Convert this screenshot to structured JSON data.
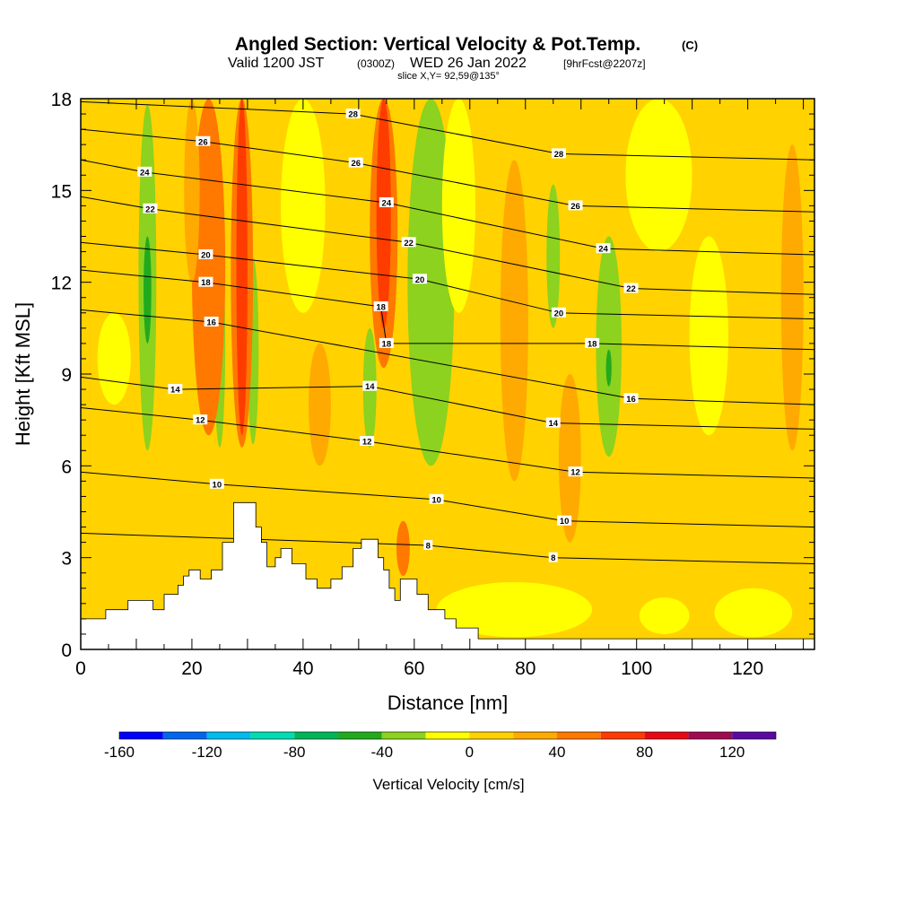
{
  "chart_data": {
    "type": "heatmap",
    "title": {
      "main": "Angled Section: Vertical Velocity & Pot.Temp.",
      "unit_tag": "(C)",
      "valid_prefix": "Valid 1200 JST",
      "valid_utc": "(0300Z)",
      "valid_date": "WED 26 Jan 2022",
      "forecast": "[9hrFcst@2207z]",
      "slice": "slice X,Y= 92,59@135°"
    },
    "xlabel": "Distance [nm]",
    "ylabel": "Height [Kft MSL]",
    "xlim": [
      0,
      132
    ],
    "ylim": [
      0,
      18
    ],
    "x_ticks": [
      "0",
      "20",
      "40",
      "60",
      "80",
      "100",
      "120"
    ],
    "y_ticks": [
      "0",
      "3",
      "6",
      "9",
      "12",
      "15",
      "18"
    ],
    "colorbar": {
      "title": "Vertical Velocity [cm/s]",
      "levels": [
        -160,
        -140,
        -120,
        -100,
        -80,
        -60,
        -40,
        -20,
        0,
        20,
        40,
        60,
        80,
        100,
        120,
        140
      ],
      "colors": [
        "#0000ff",
        "#0066ee",
        "#00bbee",
        "#00dcb4",
        "#00b45a",
        "#22aa1e",
        "#8cd21e",
        "#ffff00",
        "#ffd200",
        "#ffaa00",
        "#ff7800",
        "#ff3c00",
        "#e60a14",
        "#a00a50",
        "#5a0aa0"
      ],
      "labels": [
        "-160",
        "-120",
        "-80",
        "-40",
        "0",
        "40",
        "80",
        "120"
      ]
    },
    "background_field": {
      "value": 10,
      "color": "#fcd200"
    },
    "velocity_regions": [
      {
        "x": 12,
        "y0": 6.5,
        "y1": 17.8,
        "w": 1.6,
        "value": -30
      },
      {
        "x": 12,
        "y0": 10.0,
        "y1": 13.5,
        "w": 0.7,
        "value": -45
      },
      {
        "x": 25,
        "y0": 6.6,
        "y1": 13.5,
        "w": 1.0,
        "value": -30
      },
      {
        "x": 31,
        "y0": 6.7,
        "y1": 12.8,
        "w": 1.0,
        "value": -30
      },
      {
        "x": 52,
        "y0": 6.6,
        "y1": 10.5,
        "w": 1.2,
        "value": -30
      },
      {
        "x": 63,
        "y0": 6.0,
        "y1": 18.0,
        "w": 4.2,
        "value": -30
      },
      {
        "x": 85,
        "y0": 10.5,
        "y1": 15.2,
        "w": 1.2,
        "value": -30
      },
      {
        "x": 95,
        "y0": 6.3,
        "y1": 13.5,
        "w": 2.3,
        "value": -30
      },
      {
        "x": 95,
        "y0": 8.6,
        "y1": 9.8,
        "w": 0.5,
        "value": -45
      },
      {
        "x": 23,
        "y0": 7.0,
        "y1": 18.0,
        "w": 3.0,
        "value": 40
      },
      {
        "x": 29,
        "y0": 6.6,
        "y1": 18.0,
        "w": 2.0,
        "value": 40
      },
      {
        "x": 29,
        "y0": 7.0,
        "y1": 18.0,
        "w": 1.0,
        "value": 70
      },
      {
        "x": 54.5,
        "y0": 9.2,
        "y1": 18.0,
        "w": 2.5,
        "value": 50
      },
      {
        "x": 54.5,
        "y0": 10.5,
        "y1": 18.0,
        "w": 1.3,
        "value": 70
      },
      {
        "x": 58,
        "y0": 2.4,
        "y1": 4.2,
        "w": 1.2,
        "value": 50
      },
      {
        "x": 20,
        "y0": 12.0,
        "y1": 18.0,
        "w": 1.4,
        "value": 30
      },
      {
        "x": 43,
        "y0": 6.0,
        "y1": 10.0,
        "w": 2.0,
        "value": 30
      },
      {
        "x": 78,
        "y0": 5.5,
        "y1": 16.0,
        "w": 2.5,
        "value": 30
      },
      {
        "x": 88,
        "y0": 3.5,
        "y1": 9.0,
        "w": 2.0,
        "value": 30
      },
      {
        "x": 128,
        "y0": 6.5,
        "y1": 16.5,
        "w": 2.0,
        "value": 30
      },
      {
        "x": 78,
        "y0": 0.4,
        "y1": 2.2,
        "w": 14.0,
        "value": -10
      },
      {
        "x": 105,
        "y0": 0.5,
        "y1": 1.7,
        "w": 4.5,
        "value": -10
      },
      {
        "x": 121,
        "y0": 0.4,
        "y1": 2.0,
        "w": 7.0,
        "value": -10
      },
      {
        "x": 68,
        "y0": 11.0,
        "y1": 18.0,
        "w": 3.0,
        "value": -10
      },
      {
        "x": 104,
        "y0": 13.0,
        "y1": 18.0,
        "w": 6.0,
        "value": -10
      },
      {
        "x": 113,
        "y0": 7.0,
        "y1": 13.5,
        "w": 3.5,
        "value": -10
      },
      {
        "x": 40,
        "y0": 11.0,
        "y1": 18.0,
        "w": 4.0,
        "value": -10
      },
      {
        "x": 6,
        "y0": 8.0,
        "y1": 11.0,
        "w": 3.0,
        "value": -10
      }
    ],
    "terrain_kft": [
      [
        0,
        1.0
      ],
      [
        4.5,
        1.0
      ],
      [
        4.5,
        1.3
      ],
      [
        8.5,
        1.3
      ],
      [
        8.5,
        1.6
      ],
      [
        13,
        1.6
      ],
      [
        13,
        1.3
      ],
      [
        15,
        1.3
      ],
      [
        15,
        1.8
      ],
      [
        17.5,
        1.8
      ],
      [
        17.5,
        2.1
      ],
      [
        18.5,
        2.1
      ],
      [
        18.5,
        2.4
      ],
      [
        19.5,
        2.4
      ],
      [
        19.5,
        2.6
      ],
      [
        21.5,
        2.6
      ],
      [
        21.5,
        2.3
      ],
      [
        23.5,
        2.3
      ],
      [
        23.5,
        2.6
      ],
      [
        25.5,
        2.6
      ],
      [
        25.5,
        3.5
      ],
      [
        27.5,
        3.5
      ],
      [
        27.5,
        4.8
      ],
      [
        31.5,
        4.8
      ],
      [
        31.5,
        4.0
      ],
      [
        32.5,
        4.0
      ],
      [
        32.5,
        3.5
      ],
      [
        33.5,
        3.5
      ],
      [
        33.5,
        2.7
      ],
      [
        35,
        2.7
      ],
      [
        35,
        3.0
      ],
      [
        36,
        3.0
      ],
      [
        36,
        3.3
      ],
      [
        38,
        3.3
      ],
      [
        38,
        2.8
      ],
      [
        40.5,
        2.8
      ],
      [
        40.5,
        2.3
      ],
      [
        42.5,
        2.3
      ],
      [
        42.5,
        2.0
      ],
      [
        45,
        2.0
      ],
      [
        45,
        2.3
      ],
      [
        47,
        2.3
      ],
      [
        47,
        2.7
      ],
      [
        49,
        2.7
      ],
      [
        49,
        3.3
      ],
      [
        50.5,
        3.3
      ],
      [
        50.5,
        3.6
      ],
      [
        53.5,
        3.6
      ],
      [
        53.5,
        3.0
      ],
      [
        54.5,
        3.0
      ],
      [
        54.5,
        2.6
      ],
      [
        55.5,
        2.6
      ],
      [
        55.5,
        2.0
      ],
      [
        56.5,
        2.0
      ],
      [
        56.5,
        1.6
      ],
      [
        57.5,
        1.6
      ],
      [
        57.5,
        2.3
      ],
      [
        60.5,
        2.3
      ],
      [
        60.5,
        1.8
      ],
      [
        62.5,
        1.8
      ],
      [
        62.5,
        1.3
      ],
      [
        65.5,
        1.3
      ],
      [
        65.5,
        1.0
      ],
      [
        67.5,
        1.0
      ],
      [
        67.5,
        0.7
      ],
      [
        71.5,
        0.7
      ],
      [
        71.5,
        0.35
      ],
      [
        132,
        0.35
      ]
    ],
    "theta_contour_labels": [
      {
        "text": "28",
        "x": 49,
        "y": 17.5
      },
      {
        "text": "26",
        "x": 22,
        "y": 16.6
      },
      {
        "text": "26",
        "x": 49.5,
        "y": 15.9
      },
      {
        "text": "28",
        "x": 86,
        "y": 16.2
      },
      {
        "text": "24",
        "x": 11.5,
        "y": 15.6
      },
      {
        "text": "24",
        "x": 55,
        "y": 14.6
      },
      {
        "text": "26",
        "x": 89,
        "y": 14.5
      },
      {
        "text": "22",
        "x": 12.5,
        "y": 14.4
      },
      {
        "text": "22",
        "x": 59,
        "y": 13.3
      },
      {
        "text": "24",
        "x": 94,
        "y": 13.1
      },
      {
        "text": "20",
        "x": 22.5,
        "y": 12.9
      },
      {
        "text": "20",
        "x": 61,
        "y": 12.1
      },
      {
        "text": "18",
        "x": 22.5,
        "y": 12.0
      },
      {
        "text": "22",
        "x": 99,
        "y": 11.8
      },
      {
        "text": "18",
        "x": 54,
        "y": 11.2
      },
      {
        "text": "20",
        "x": 86,
        "y": 11.0
      },
      {
        "text": "16",
        "x": 23.5,
        "y": 10.7
      },
      {
        "text": "18",
        "x": 55,
        "y": 10.0
      },
      {
        "text": "18",
        "x": 92,
        "y": 10.0
      },
      {
        "text": "14",
        "x": 17,
        "y": 8.5
      },
      {
        "text": "14",
        "x": 52,
        "y": 8.6
      },
      {
        "text": "16",
        "x": 99,
        "y": 8.2
      },
      {
        "text": "12",
        "x": 21.5,
        "y": 7.5
      },
      {
        "text": "14",
        "x": 85,
        "y": 7.4
      },
      {
        "text": "12",
        "x": 51.5,
        "y": 6.8
      },
      {
        "text": "12",
        "x": 89,
        "y": 5.8
      },
      {
        "text": "10",
        "x": 24.5,
        "y": 5.4
      },
      {
        "text": "10",
        "x": 64,
        "y": 4.9
      },
      {
        "text": "10",
        "x": 87,
        "y": 4.2
      },
      {
        "text": "8",
        "x": 62.5,
        "y": 3.4
      },
      {
        "text": "8",
        "x": 85,
        "y": 3.0
      }
    ]
  },
  "colors": {
    "contour": "#000000",
    "frame": "#000000",
    "terrain": "#ffffff"
  }
}
